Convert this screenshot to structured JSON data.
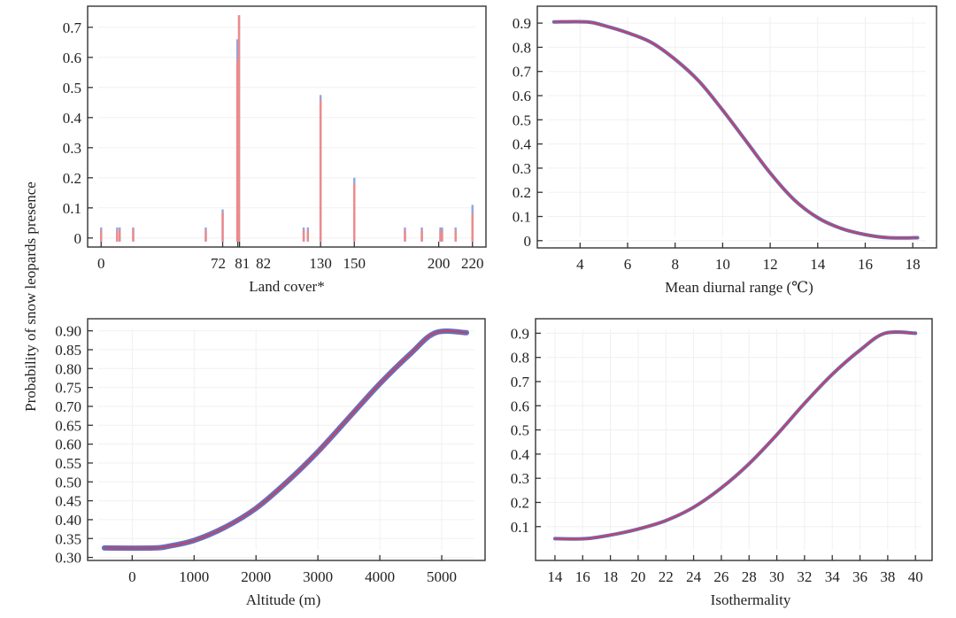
{
  "figure": {
    "shared_ylabel": "Probability of snow leopards presence"
  },
  "colors": {
    "bar_red": "#ee8a8a",
    "bar_blue": "#8fa6dd",
    "curve_band": "#3340a0",
    "curve_line": "#d8385a"
  },
  "chart_data": [
    {
      "id": "landcover",
      "type": "bar",
      "title": "",
      "xlabel": "Land cover*",
      "ylabel": "Probability of snow leopards presence",
      "xlim": [
        -8,
        228
      ],
      "ylim": [
        -0.03,
        0.77
      ],
      "xticks": [
        0,
        72,
        81,
        82,
        130,
        150,
        200,
        220
      ],
      "xtick_labels": [
        "0",
        "72",
        "81",
        "82",
        "130",
        "150",
        "200",
        "220"
      ],
      "yticks": [
        0,
        0.1,
        0.2,
        0.3,
        0.4,
        0.5,
        0.6,
        0.7
      ],
      "ytick_labels": [
        "0",
        "0.1",
        "0.2",
        "0.3",
        "0.4",
        "0.5",
        "0.6",
        "0.7"
      ],
      "series": [
        {
          "name": "upper (blue)",
          "x": [
            0,
            9.5,
            11,
            19,
            62,
            72,
            80.7,
            81.7,
            120,
            122.5,
            130,
            150,
            180,
            190,
            201,
            202,
            210,
            220
          ],
          "values": [
            0.035,
            0.035,
            0.035,
            0.035,
            0.035,
            0.095,
            0.66,
            0.74,
            0.035,
            0.035,
            0.475,
            0.2,
            0.035,
            0.035,
            0.035,
            0.035,
            0.035,
            0.11
          ]
        },
        {
          "name": "lower (red)",
          "x": [
            0,
            9.5,
            11,
            19,
            62,
            72,
            80.7,
            81.7,
            120,
            122.5,
            130,
            150,
            180,
            190,
            201,
            202,
            210,
            220
          ],
          "values": [
            0.025,
            0.025,
            0.025,
            0.03,
            0.025,
            0.085,
            0.59,
            0.74,
            0.025,
            0.025,
            0.46,
            0.18,
            0.025,
            0.025,
            0.025,
            0.025,
            0.025,
            0.08
          ]
        }
      ]
    },
    {
      "id": "diurnal",
      "type": "line",
      "title": "",
      "xlabel": "Mean diurnal range (℃)",
      "ylabel": "Probability of snow leopards presence",
      "xlim": [
        2.2,
        19.0
      ],
      "ylim": [
        -0.03,
        0.97
      ],
      "xticks": [
        4,
        6,
        8,
        10,
        12,
        14,
        16,
        18
      ],
      "xtick_labels": [
        "4",
        "6",
        "8",
        "10",
        "12",
        "14",
        "16",
        "18"
      ],
      "yticks": [
        0,
        0.1,
        0.2,
        0.3,
        0.4,
        0.5,
        0.6,
        0.7,
        0.8,
        0.9
      ],
      "ytick_labels": [
        "0",
        "0.1",
        "0.2",
        "0.3",
        "0.4",
        "0.5",
        "0.6",
        "0.7",
        "0.8",
        "0.9"
      ],
      "series": [
        {
          "name": "response",
          "x": [
            2.9,
            4.3,
            5,
            6,
            7,
            8,
            9,
            10,
            11,
            12,
            13,
            14,
            15,
            16,
            17,
            18.2
          ],
          "values": [
            0.905,
            0.905,
            0.89,
            0.86,
            0.82,
            0.75,
            0.66,
            0.54,
            0.41,
            0.28,
            0.17,
            0.095,
            0.05,
            0.025,
            0.012,
            0.012
          ]
        }
      ]
    },
    {
      "id": "altitude",
      "type": "line",
      "title": "",
      "xlabel": "Altitude (m)",
      "ylabel": "Probability of snow leopards presence",
      "xlim": [
        -720,
        5700
      ],
      "ylim": [
        0.292,
        0.932
      ],
      "xticks": [
        0,
        1000,
        2000,
        3000,
        4000,
        5000
      ],
      "xtick_labels": [
        "0",
        "1000",
        "2000",
        "3000",
        "4000",
        "5000"
      ],
      "yticks": [
        0.3,
        0.35,
        0.4,
        0.45,
        0.5,
        0.55,
        0.6,
        0.65,
        0.7,
        0.75,
        0.8,
        0.85,
        0.9
      ],
      "ytick_labels": [
        "0.30",
        "0.35",
        "0.40",
        "0.45",
        "0.50",
        "0.55",
        "0.60",
        "0.65",
        "0.70",
        "0.75",
        "0.80",
        "0.85",
        "0.90"
      ],
      "series": [
        {
          "name": "response",
          "x": [
            -450,
            350,
            600,
            1000,
            1500,
            2000,
            2500,
            3000,
            3500,
            4000,
            4500,
            4900,
            5400
          ],
          "values": [
            0.325,
            0.325,
            0.33,
            0.345,
            0.38,
            0.43,
            0.5,
            0.58,
            0.67,
            0.76,
            0.84,
            0.895,
            0.895
          ]
        }
      ]
    },
    {
      "id": "isothermality",
      "type": "line",
      "title": "",
      "xlabel": "Isothermality",
      "ylabel": "Probability of snow leopards presence",
      "xlim": [
        12.6,
        41.2
      ],
      "ylim": [
        -0.04,
        0.96
      ],
      "xticks": [
        14,
        16,
        18,
        20,
        22,
        24,
        26,
        28,
        30,
        32,
        34,
        36,
        38,
        40
      ],
      "xtick_labels": [
        "14",
        "16",
        "18",
        "20",
        "22",
        "24",
        "26",
        "28",
        "30",
        "32",
        "34",
        "36",
        "38",
        "40"
      ],
      "yticks": [
        0.1,
        0.2,
        0.3,
        0.4,
        0.5,
        0.6,
        0.7,
        0.8,
        0.9
      ],
      "ytick_labels": [
        "0.1",
        "0.2",
        "0.3",
        "0.4",
        "0.5",
        "0.6",
        "0.7",
        "0.8",
        "0.9"
      ],
      "series": [
        {
          "name": "response",
          "x": [
            14,
            16.2,
            18,
            20,
            22,
            24,
            26,
            28,
            30,
            32,
            34,
            36,
            37.8,
            40
          ],
          "values": [
            0.05,
            0.05,
            0.065,
            0.09,
            0.125,
            0.18,
            0.26,
            0.36,
            0.48,
            0.61,
            0.73,
            0.83,
            0.9,
            0.9
          ]
        }
      ]
    }
  ]
}
